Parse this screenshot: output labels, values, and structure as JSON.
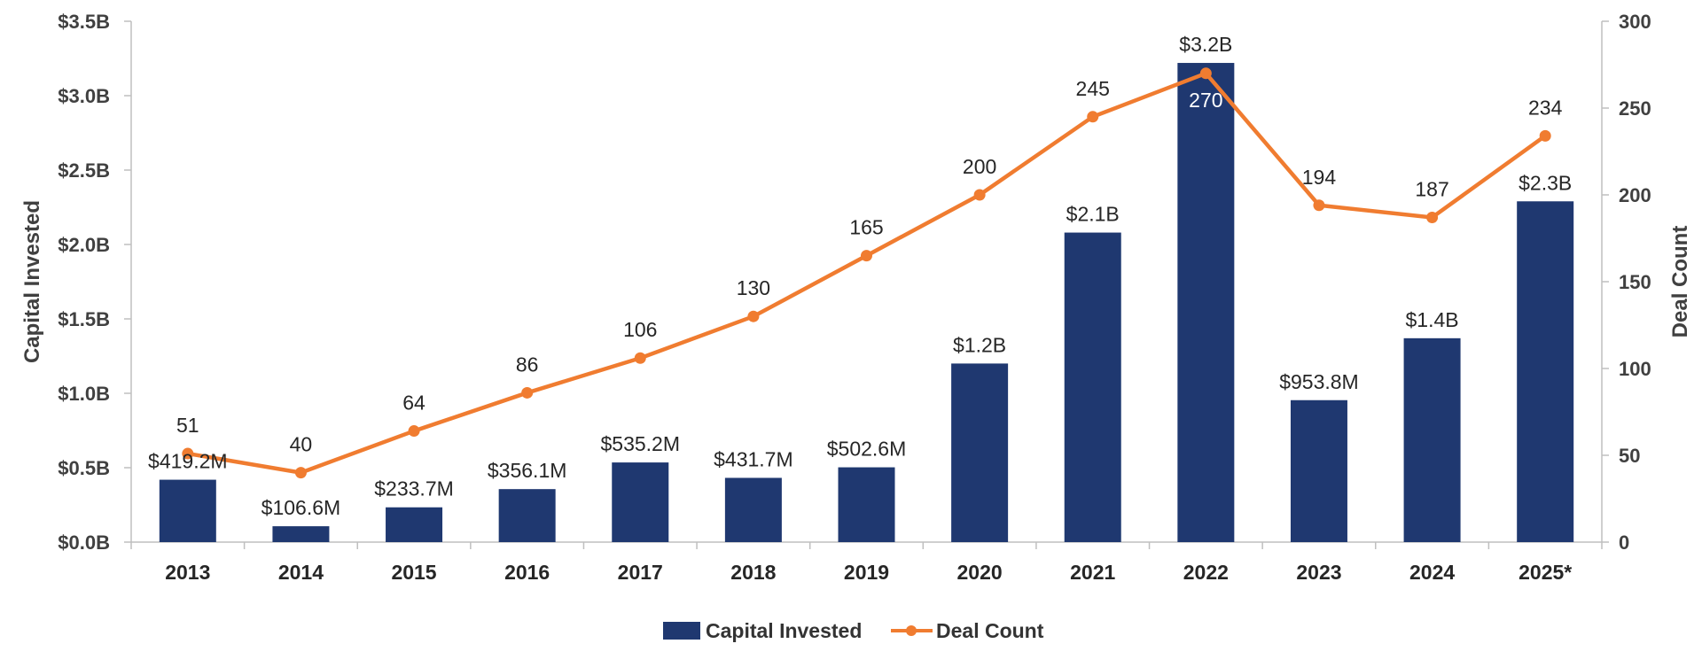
{
  "chart_data": {
    "type": "bar+line",
    "categories": [
      "2013",
      "2014",
      "2015",
      "2016",
      "2017",
      "2018",
      "2019",
      "2020",
      "2021",
      "2022",
      "2023",
      "2024",
      "2025*"
    ],
    "series": [
      {
        "name": "Capital Invested",
        "type": "bar",
        "axis": "left",
        "color": "#1f3870",
        "values": [
          0.4192,
          0.1066,
          0.2337,
          0.3561,
          0.5352,
          0.4317,
          0.5026,
          1.2,
          2.08,
          3.22,
          0.9538,
          1.37,
          2.29
        ],
        "labels": [
          "$419.2M",
          "$106.6M",
          "$233.7M",
          "$356.1M",
          "$535.2M",
          "$431.7M",
          "$502.6M",
          "$1.2B",
          "$2.1B",
          "$3.2B",
          "$953.8M",
          "$1.4B",
          "$2.3B"
        ]
      },
      {
        "name": "Deal Count",
        "type": "line",
        "axis": "right",
        "color": "#f07c30",
        "values": [
          51,
          40,
          64,
          86,
          106,
          130,
          165,
          200,
          245,
          270,
          194,
          187,
          234
        ],
        "labels": [
          "51",
          "40",
          "64",
          "86",
          "106",
          "130",
          "165",
          "200",
          "245",
          "270",
          "194",
          "187",
          "234"
        ]
      }
    ],
    "y_left": {
      "label": "Capital Invested",
      "range": [
        0,
        3.5
      ],
      "ticks": [
        0,
        0.5,
        1.0,
        1.5,
        2.0,
        2.5,
        3.0,
        3.5
      ],
      "tick_labels": [
        "$0.0B",
        "$0.5B",
        "$1.0B",
        "$1.5B",
        "$2.0B",
        "$2.5B",
        "$3.0B",
        "$3.5B"
      ]
    },
    "y_right": {
      "label": "Deal Count",
      "range": [
        0,
        300
      ],
      "ticks": [
        0,
        50,
        100,
        150,
        200,
        250,
        300
      ],
      "tick_labels": [
        "0",
        "50",
        "100",
        "150",
        "200",
        "250",
        "300"
      ]
    },
    "legend": {
      "position": "bottom-center",
      "items": [
        "Capital Invested",
        "Deal Count"
      ]
    },
    "grid": false,
    "axis_color": "#bfbfbf"
  }
}
